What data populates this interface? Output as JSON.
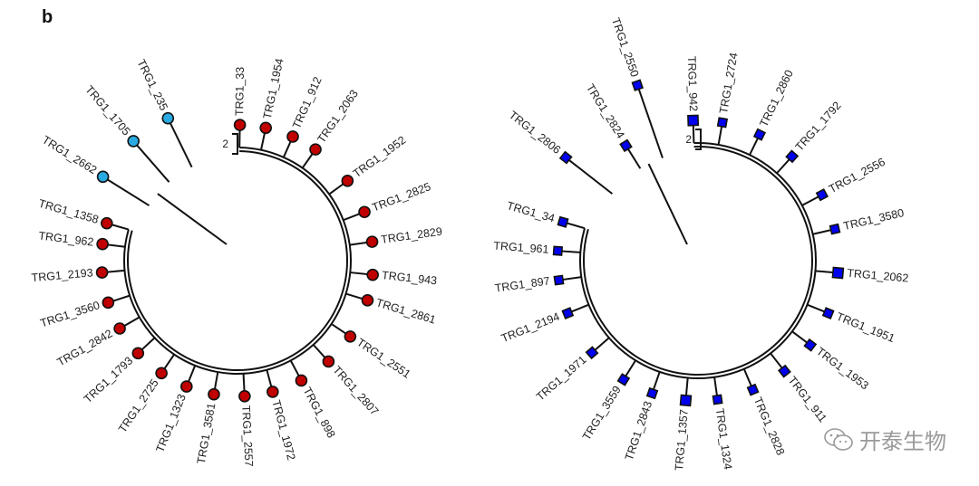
{
  "panel_label": "b",
  "watermark": {
    "text": "开泰生物",
    "icon": "wechat-icon"
  },
  "colors": {
    "red_tip": "#c00000",
    "cyan_tip": "#29abe2",
    "blue_tip": "#0000ee",
    "branch": "#111111"
  },
  "trees": [
    {
      "name": "left-tree",
      "tip_shape": "circle",
      "scale_label": "2",
      "tips": [
        {
          "label": "TRG1_33",
          "color": "red",
          "angle": -89
        },
        {
          "label": "TRG1_1954",
          "color": "red",
          "angle": -78
        },
        {
          "label": "TRG1_912",
          "color": "red",
          "angle": -66
        },
        {
          "label": "TRG1_2063",
          "color": "red",
          "angle": -55
        },
        {
          "label": "TRG1_1952",
          "color": "red",
          "angle": -36
        },
        {
          "label": "TRG1_2825",
          "color": "red",
          "angle": -21
        },
        {
          "label": "TRG1_2829",
          "color": "red",
          "angle": -8
        },
        {
          "label": "TRG1_943",
          "color": "red",
          "angle": 6
        },
        {
          "label": "TRG1_2861",
          "color": "red",
          "angle": 17
        },
        {
          "label": "TRG1_2551",
          "color": "red",
          "angle": 34
        },
        {
          "label": "TRG1_2807",
          "color": "red",
          "angle": 48
        },
        {
          "label": "TRG1_898",
          "color": "red",
          "angle": 62
        },
        {
          "label": "TRG1_1972",
          "color": "red",
          "angle": 75
        },
        {
          "label": "TRG1_2557",
          "color": "red",
          "angle": 87
        },
        {
          "label": "TRG1_3581",
          "color": "red",
          "angle": 100
        },
        {
          "label": "TRG1_1323",
          "color": "red",
          "angle": 112
        },
        {
          "label": "TRG1_2725",
          "color": "red",
          "angle": 124
        },
        {
          "label": "TRG1_1793",
          "color": "red",
          "angle": 137
        },
        {
          "label": "TRG1_2842",
          "color": "red",
          "angle": 150
        },
        {
          "label": "TRG1_3560",
          "color": "red",
          "angle": 162
        },
        {
          "label": "TRG1_2193",
          "color": "red",
          "angle": 175
        },
        {
          "label": "TRG1_962",
          "color": "red",
          "angle": 187
        },
        {
          "label": "TRG1_1358",
          "color": "red",
          "angle": 196
        },
        {
          "label": "TRG1_2662",
          "color": "cyan",
          "angle": 212
        },
        {
          "label": "TRG1_1705",
          "color": "cyan",
          "angle": 229
        },
        {
          "label": "TRG1_235",
          "color": "cyan",
          "angle": 244
        }
      ]
    },
    {
      "name": "right-tree",
      "tip_shape": "square",
      "scale_label": "2",
      "tips": [
        {
          "label": "TRG1_942",
          "color": "blue",
          "angle": -92
        },
        {
          "label": "TRG1_2724",
          "color": "blue",
          "angle": -80
        },
        {
          "label": "TRG1_2860",
          "color": "blue",
          "angle": -64
        },
        {
          "label": "TRG1_1792",
          "color": "blue",
          "angle": -48
        },
        {
          "label": "TRG1_2556",
          "color": "blue",
          "angle": -28
        },
        {
          "label": "TRG1_3580",
          "color": "blue",
          "angle": -13
        },
        {
          "label": "TRG1_2062",
          "color": "blue",
          "angle": 5
        },
        {
          "label": "TRG1_1951",
          "color": "blue",
          "angle": 22
        },
        {
          "label": "TRG1_1953",
          "color": "blue",
          "angle": 37
        },
        {
          "label": "TRG1_911",
          "color": "blue",
          "angle": 52
        },
        {
          "label": "TRG1_2828",
          "color": "blue",
          "angle": 67
        },
        {
          "label": "TRG1_1324",
          "color": "blue",
          "angle": 82
        },
        {
          "label": "TRG1_1357",
          "color": "blue",
          "angle": 95
        },
        {
          "label": "TRG1_2843",
          "color": "blue",
          "angle": 109
        },
        {
          "label": "TRG1_3559",
          "color": "blue",
          "angle": 122
        },
        {
          "label": "TRG1_1971",
          "color": "blue",
          "angle": 139
        },
        {
          "label": "TRG1_2194",
          "color": "blue",
          "angle": 158
        },
        {
          "label": "TRG1_897",
          "color": "blue",
          "angle": 172
        },
        {
          "label": "TRG1_961",
          "color": "blue",
          "angle": 184
        },
        {
          "label": "TRG1_34",
          "color": "blue",
          "angle": 196
        },
        {
          "label": "TRG1_2806",
          "color": "blue",
          "angle": 218
        },
        {
          "label": "TRG1_2824",
          "color": "blue",
          "angle": 238
        },
        {
          "label": "TRG1_2550",
          "color": "blue",
          "angle": 251
        }
      ]
    }
  ]
}
